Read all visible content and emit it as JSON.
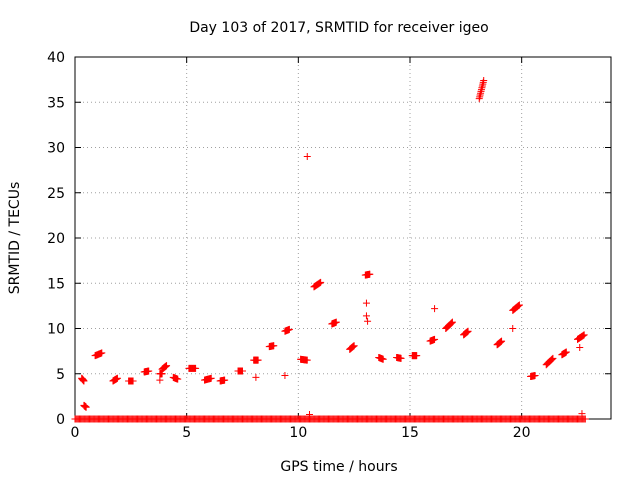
{
  "chart_data": {
    "type": "scatter",
    "title": "Day 103 of 2017, SRMTID for receiver igeo",
    "xlabel": "GPS time / hours",
    "ylabel": "SRMTID / TECUs",
    "xlim": [
      0,
      24
    ],
    "ylim": [
      0,
      40
    ],
    "xticks": [
      0,
      5,
      10,
      15,
      20
    ],
    "yticks": [
      0,
      5,
      10,
      15,
      20,
      25,
      30,
      35,
      40
    ],
    "grid": true,
    "marker": "+",
    "color": "#ff0000",
    "series": [
      {
        "name": "SRMTID",
        "clusters": [
          {
            "x": [
              0.3,
              0.4
            ],
            "y": [
              4.5,
              4.2
            ]
          },
          {
            "x": [
              0.4,
              0.5
            ],
            "y": [
              1.5,
              1.3
            ]
          },
          {
            "x": [
              0.9,
              1.2
            ],
            "y": [
              7.0,
              7.3
            ]
          },
          {
            "x": [
              1.7,
              1.9
            ],
            "y": [
              4.2,
              4.5
            ]
          },
          {
            "x": [
              2.4,
              2.6
            ],
            "y": [
              4.2,
              4.2
            ]
          },
          {
            "x": [
              3.1,
              3.3
            ],
            "y": [
              5.2,
              5.3
            ]
          },
          {
            "x": [
              3.8,
              3.9
            ],
            "y": [
              5.0,
              5.0
            ]
          },
          {
            "x": [
              3.9,
              4.1
            ],
            "y": [
              5.5,
              5.9
            ]
          },
          {
            "x": [
              4.4,
              4.6
            ],
            "y": [
              4.6,
              4.4
            ]
          },
          {
            "x": [
              5.1,
              5.4
            ],
            "y": [
              5.6,
              5.6
            ]
          },
          {
            "x": [
              5.8,
              6.1
            ],
            "y": [
              4.3,
              4.5
            ]
          },
          {
            "x": [
              6.5,
              6.7
            ],
            "y": [
              4.2,
              4.3
            ]
          },
          {
            "x": [
              7.3,
              7.5
            ],
            "y": [
              5.3,
              5.3
            ]
          },
          {
            "x": [
              8.0,
              8.2
            ],
            "y": [
              6.5,
              6.5
            ]
          },
          {
            "x": [
              8.7,
              8.9
            ],
            "y": [
              8.0,
              8.1
            ]
          },
          {
            "x": [
              9.4,
              9.6
            ],
            "y": [
              9.7,
              9.9
            ]
          },
          {
            "x": [
              10.1,
              10.4
            ],
            "y": [
              6.6,
              6.5
            ]
          },
          {
            "x": [
              10.7,
              11.0
            ],
            "y": [
              14.6,
              15.1
            ]
          },
          {
            "x": [
              11.5,
              11.7
            ],
            "y": [
              10.5,
              10.7
            ]
          },
          {
            "x": [
              12.3,
              12.5
            ],
            "y": [
              7.7,
              8.1
            ]
          },
          {
            "x": [
              13.0,
              13.2
            ],
            "y": [
              15.9,
              16.0
            ]
          },
          {
            "x": [
              13.6,
              13.8
            ],
            "y": [
              6.8,
              6.6
            ]
          },
          {
            "x": [
              14.4,
              14.6
            ],
            "y": [
              6.8,
              6.7
            ]
          },
          {
            "x": [
              15.1,
              15.3
            ],
            "y": [
              7.0,
              7.0
            ]
          },
          {
            "x": [
              15.9,
              16.1
            ],
            "y": [
              8.6,
              8.8
            ]
          },
          {
            "x": [
              16.6,
              16.9
            ],
            "y": [
              10.0,
              10.7
            ]
          },
          {
            "x": [
              17.4,
              17.6
            ],
            "y": [
              9.3,
              9.7
            ]
          },
          {
            "x": [
              18.1,
              18.3
            ],
            "y": [
              35.4,
              37.4
            ]
          },
          {
            "x": [
              18.9,
              19.1
            ],
            "y": [
              8.2,
              8.6
            ]
          },
          {
            "x": [
              19.6,
              19.9
            ],
            "y": [
              12.0,
              12.6
            ]
          },
          {
            "x": [
              20.4,
              20.6
            ],
            "y": [
              4.7,
              4.8
            ]
          },
          {
            "x": [
              21.1,
              21.4
            ],
            "y": [
              6.0,
              6.7
            ]
          },
          {
            "x": [
              21.8,
              22.0
            ],
            "y": [
              7.1,
              7.4
            ]
          },
          {
            "x": [
              22.5,
              22.8
            ],
            "y": [
              8.8,
              9.3
            ]
          }
        ],
        "points": [
          {
            "x": 10.4,
            "y": 29.0
          },
          {
            "x": 13.05,
            "y": 12.8
          },
          {
            "x": 13.05,
            "y": 11.4
          },
          {
            "x": 13.1,
            "y": 10.8
          },
          {
            "x": 16.1,
            "y": 12.2
          },
          {
            "x": 19.6,
            "y": 10.0
          },
          {
            "x": 8.1,
            "y": 4.6
          },
          {
            "x": 9.4,
            "y": 4.8
          },
          {
            "x": 3.8,
            "y": 4.3
          },
          {
            "x": 22.6,
            "y": 7.9
          },
          {
            "x": 22.7,
            "y": 0.6
          },
          {
            "x": 10.5,
            "y": 0.5
          }
        ],
        "baseline": {
          "y": 0.0,
          "x_range": [
            0.0,
            22.9
          ],
          "note": "dense run of near-zero values across the whole day"
        }
      }
    ]
  }
}
